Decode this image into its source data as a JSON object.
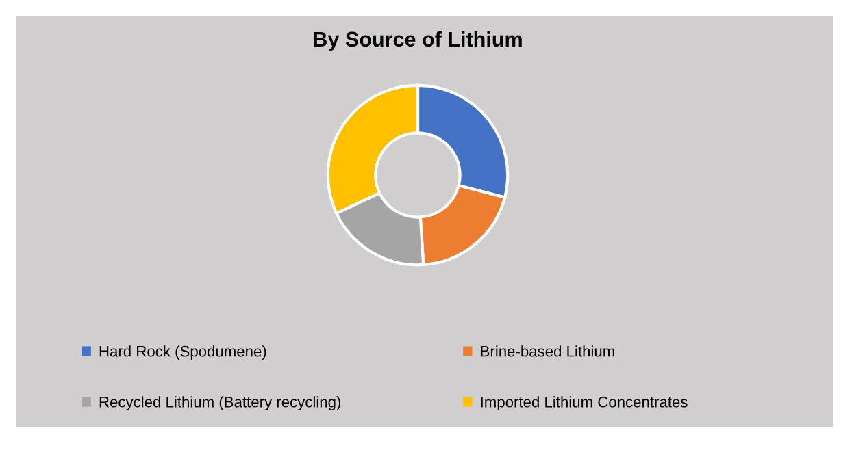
{
  "chart_data": {
    "type": "donut",
    "title": "By Source of Lithium",
    "categories": [
      "Hard Rock (Spodumene)",
      "Brine-based Lithium",
      "Recycled Lithium (Battery recycling)",
      "Imported Lithium Concentrates"
    ],
    "values": [
      29,
      20,
      19,
      32
    ],
    "colors": [
      "#4472c4",
      "#ed7d31",
      "#a5a5a5",
      "#ffc000"
    ],
    "legend": "bottom"
  }
}
